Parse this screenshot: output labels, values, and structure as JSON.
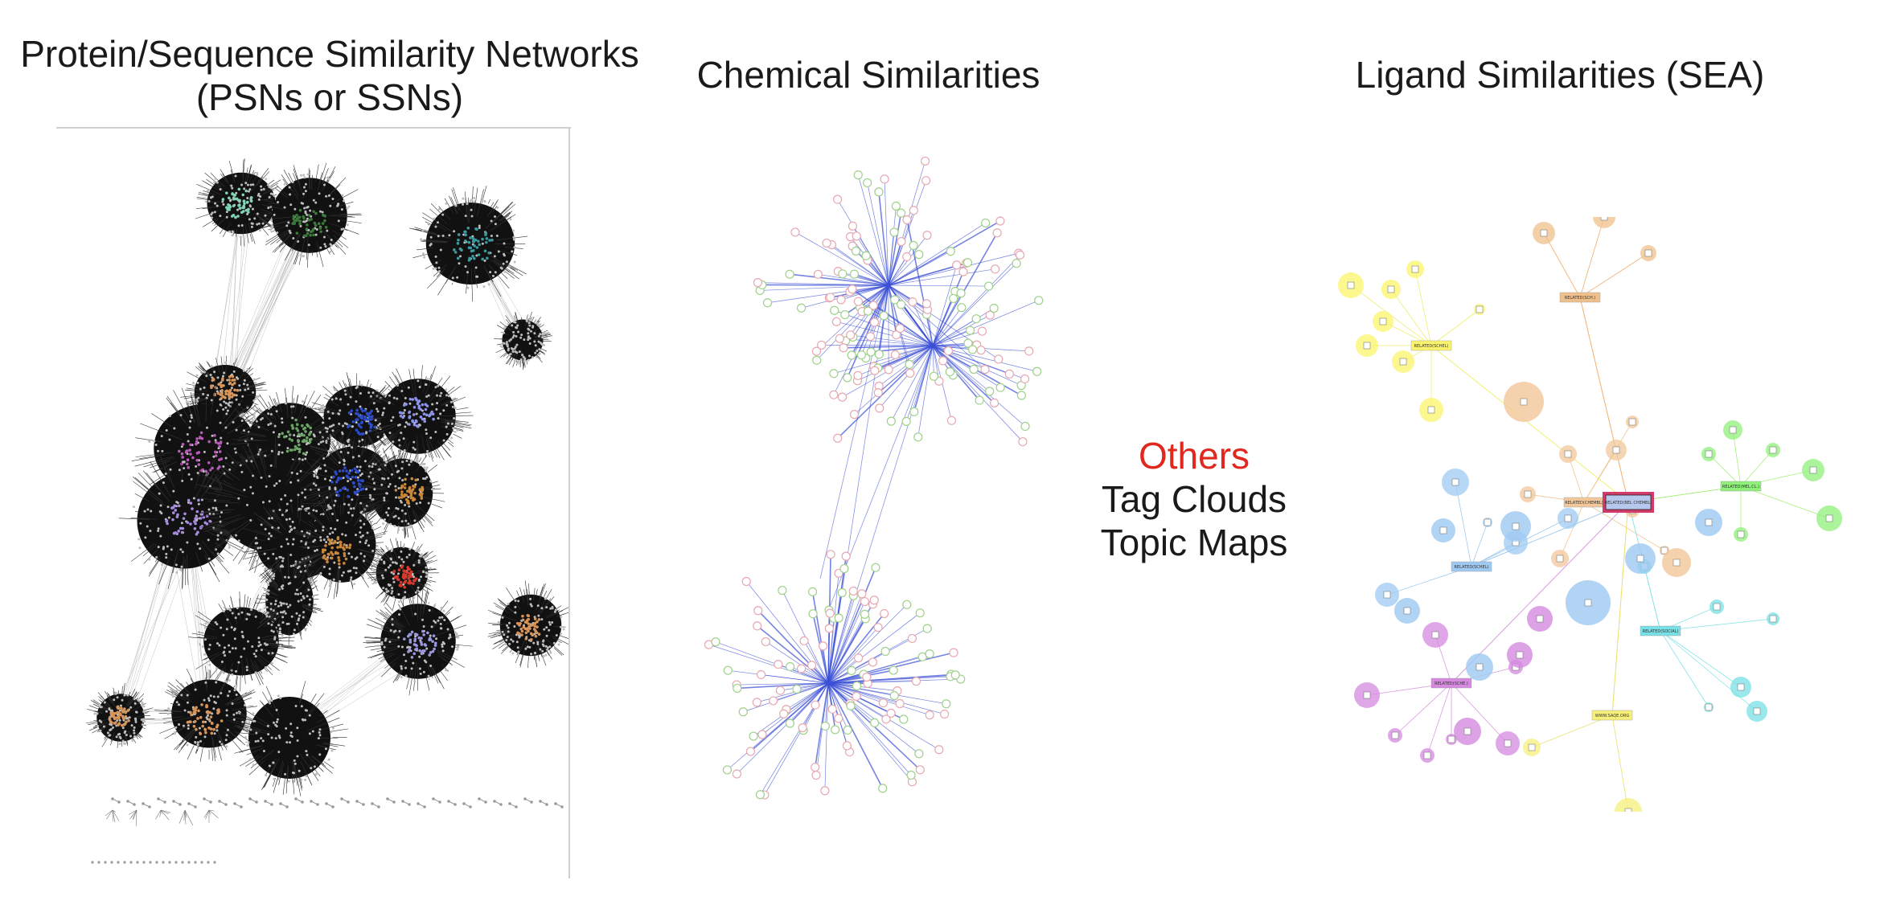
{
  "titles": {
    "psn_line1": "Protein/Sequence Similarity Networks",
    "psn_line2": "(PSNs or SSNs)",
    "chemical": "Chemical Similarities",
    "ligand": "Ligand Similarities (SEA)"
  },
  "others": {
    "heading": "Others",
    "item1": "Tag Clouds",
    "item2": "Topic Maps",
    "heading_color": "#e0281e"
  },
  "psn_clusters": [
    {
      "name": "top-left",
      "cx": 0,
      "hi": [
        "#7ed6b4",
        "#3b7a3b"
      ]
    },
    {
      "name": "top-right",
      "hi": [
        "#3a9aa0"
      ]
    },
    {
      "name": "central",
      "hi": [
        "#b75ab8",
        "#2c4cc9",
        "#8c93e6",
        "#c9883a",
        "#d63a2e",
        "#6aa364",
        "#a88ae0"
      ]
    },
    {
      "name": "bottom",
      "hi": [
        "#d8955a",
        "#9a98e0"
      ]
    }
  ],
  "chemical_network": {
    "edge_color": "#3a4fd6",
    "node_colors": [
      "#e7a8b0",
      "#9fd18a"
    ]
  },
  "sea_network": {
    "hub_label": "RELATED(BEL CHEMBL)",
    "hubs": [
      {
        "label": "RELATED(SCHEL)",
        "color": "#fbf46a"
      },
      {
        "label": "RELATED(SCH.)",
        "color": "#f0c08c"
      },
      {
        "label": "RELATED(MEL.CL.)",
        "color": "#8ff07a"
      },
      {
        "label": "RELATED(CHEMBL)",
        "color": "#f2c79a"
      },
      {
        "label": "RELATED(SCHEL)",
        "color": "#9ec9f2"
      },
      {
        "label": "RELATED(SCHE.)",
        "color": "#d58ae0"
      },
      {
        "label": "RELATED(SOCIAL)",
        "color": "#78e0e6"
      },
      {
        "label": "WWW.SAQE.ORG",
        "color": "#f6f07a"
      }
    ]
  }
}
